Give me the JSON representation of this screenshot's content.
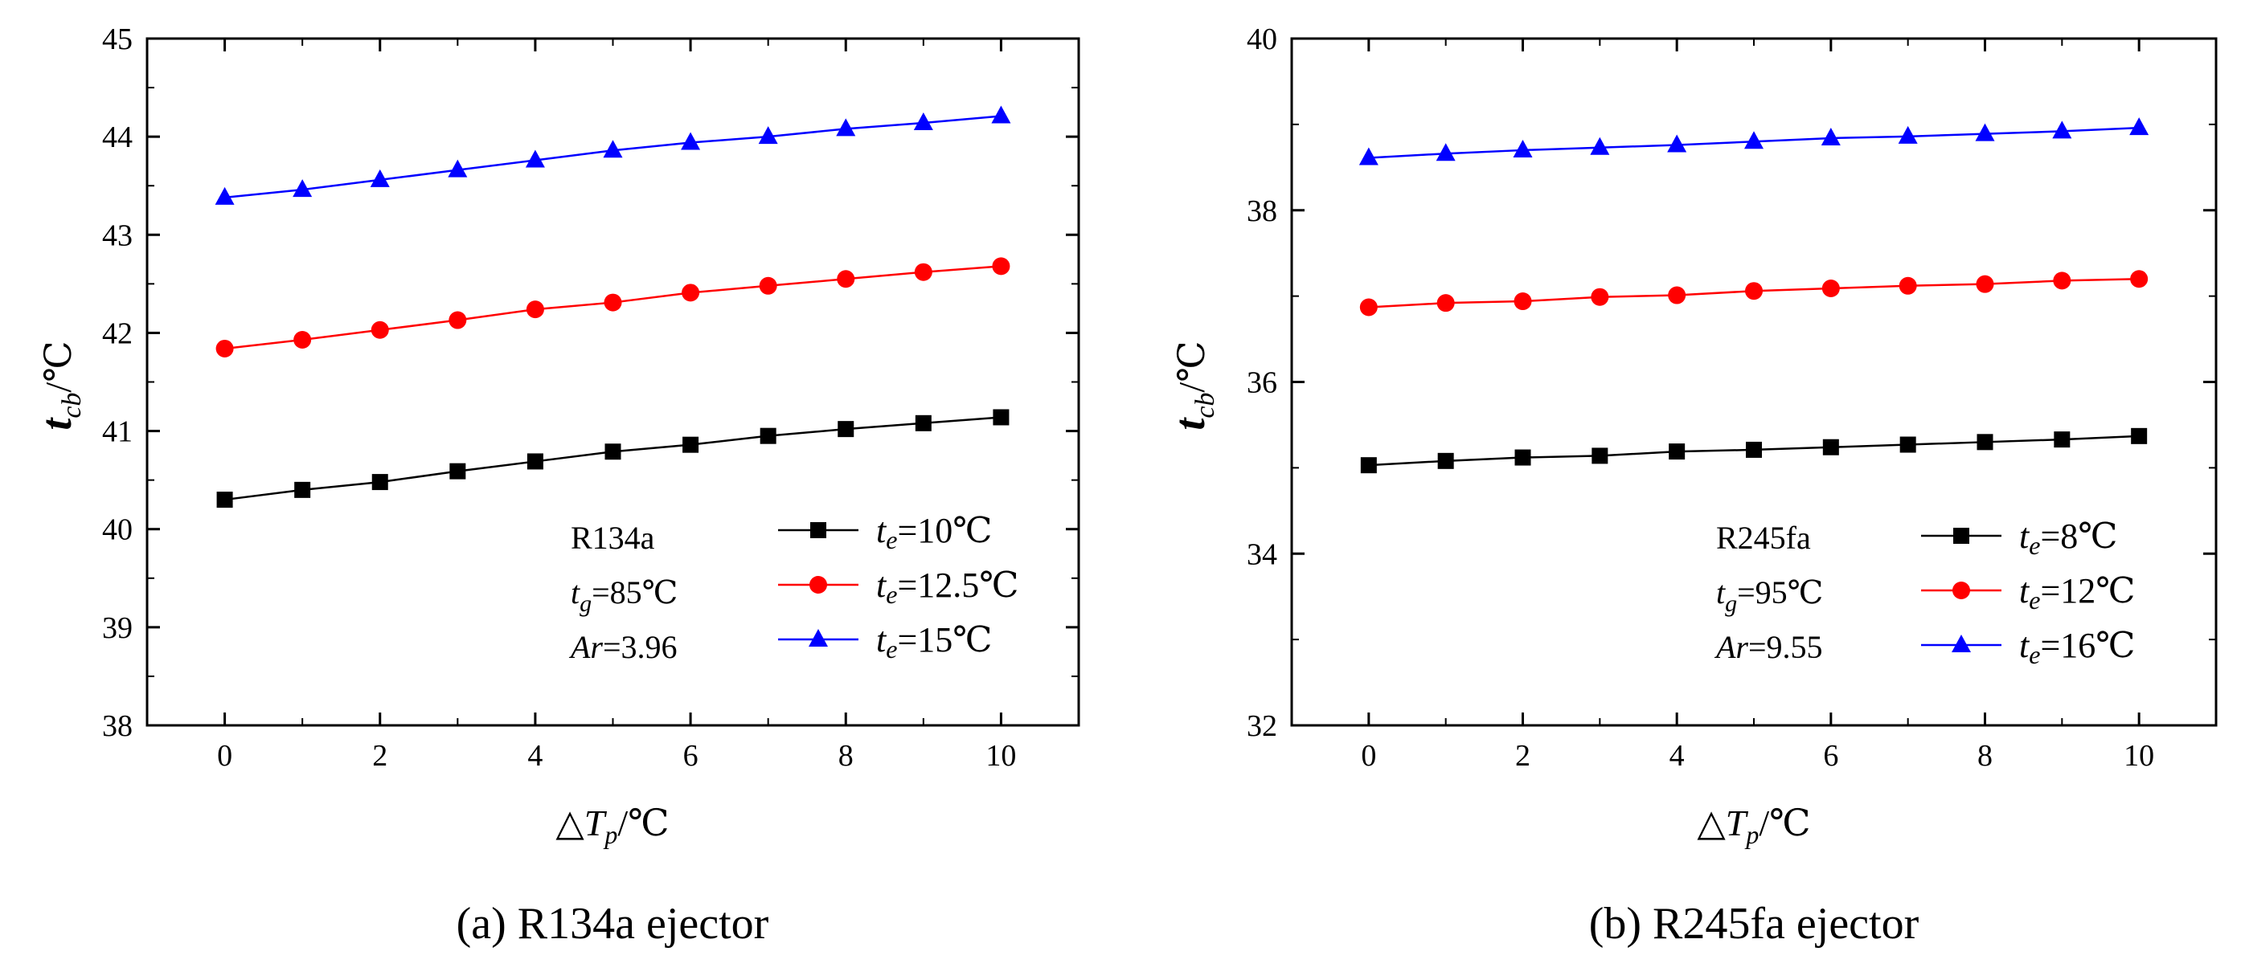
{
  "chart_data": [
    {
      "type": "line",
      "caption": "(a)  R134a ejector",
      "xlabel": {
        "main": "△T",
        "sub": "p",
        "unit": "/℃"
      },
      "ylabel": {
        "main": "t",
        "sub": "cb",
        "unit": "/℃"
      },
      "x": [
        0,
        1,
        2,
        3,
        4,
        5,
        6,
        7,
        8,
        9,
        10
      ],
      "xlim": [
        -1,
        11
      ],
      "ylim": [
        38,
        45
      ],
      "xticks": [
        0,
        2,
        4,
        6,
        8,
        10
      ],
      "yticks": [
        38,
        39,
        40,
        41,
        42,
        43,
        44,
        45
      ],
      "params": [
        {
          "main": "R134a",
          "sub": "",
          "suffix": "",
          "italic": false
        },
        {
          "main": "t",
          "sub": "g",
          "suffix": "=85℃",
          "italic": true
        },
        {
          "main": "Ar",
          "sub": "",
          "suffix": "=3.96",
          "italic": true
        }
      ],
      "series": [
        {
          "name": "te=10℃",
          "label_main": "t",
          "label_sub": "e",
          "label_suffix": "=10℃",
          "color": "#000000",
          "marker": "square",
          "values": [
            40.3,
            40.4,
            40.48,
            40.59,
            40.69,
            40.79,
            40.86,
            40.95,
            41.02,
            41.08,
            41.14
          ]
        },
        {
          "name": "te=12.5℃",
          "label_main": "t",
          "label_sub": "e",
          "label_suffix": "=12.5℃",
          "color": "#ff0000",
          "marker": "circle",
          "values": [
            41.84,
            41.93,
            42.03,
            42.13,
            42.24,
            42.31,
            42.41,
            42.48,
            42.55,
            42.62,
            42.68
          ]
        },
        {
          "name": "te=15℃",
          "label_main": "t",
          "label_sub": "e",
          "label_suffix": "=15℃",
          "color": "#0000ff",
          "marker": "triangle",
          "values": [
            43.38,
            43.46,
            43.56,
            43.66,
            43.76,
            43.86,
            43.94,
            44.0,
            44.08,
            44.14,
            44.21
          ]
        }
      ]
    },
    {
      "type": "line",
      "caption": "(b)  R245fa ejector",
      "xlabel": {
        "main": "△T",
        "sub": "p",
        "unit": "/℃"
      },
      "ylabel": {
        "main": "t",
        "sub": "cb",
        "unit": "/℃"
      },
      "x": [
        0,
        1,
        2,
        3,
        4,
        5,
        6,
        7,
        8,
        9,
        10
      ],
      "xlim": [
        -1,
        11
      ],
      "ylim": [
        32,
        40
      ],
      "xticks": [
        0,
        2,
        4,
        6,
        8,
        10
      ],
      "yticks": [
        32,
        34,
        36,
        38,
        40
      ],
      "params": [
        {
          "main": "R245fa",
          "sub": "",
          "suffix": "",
          "italic": false
        },
        {
          "main": "t",
          "sub": "g",
          "suffix": "=95℃",
          "italic": true
        },
        {
          "main": "Ar",
          "sub": "",
          "suffix": "=9.55",
          "italic": true
        }
      ],
      "series": [
        {
          "name": "te=8℃",
          "label_main": "t",
          "label_sub": "e",
          "label_suffix": "=8℃",
          "color": "#000000",
          "marker": "square",
          "values": [
            35.03,
            35.08,
            35.12,
            35.14,
            35.19,
            35.21,
            35.24,
            35.27,
            35.3,
            35.33,
            35.37
          ]
        },
        {
          "name": "te=12℃",
          "label_main": "t",
          "label_sub": "e",
          "label_suffix": "=12℃",
          "color": "#ff0000",
          "marker": "circle",
          "values": [
            36.87,
            36.92,
            36.94,
            36.99,
            37.01,
            37.06,
            37.09,
            37.12,
            37.14,
            37.18,
            37.2
          ]
        },
        {
          "name": "te=16℃",
          "label_main": "t",
          "label_sub": "e",
          "label_suffix": "=16℃",
          "color": "#0000ff",
          "marker": "triangle",
          "values": [
            38.61,
            38.66,
            38.7,
            38.73,
            38.76,
            38.8,
            38.84,
            38.86,
            38.89,
            38.92,
            38.96
          ]
        }
      ]
    }
  ]
}
